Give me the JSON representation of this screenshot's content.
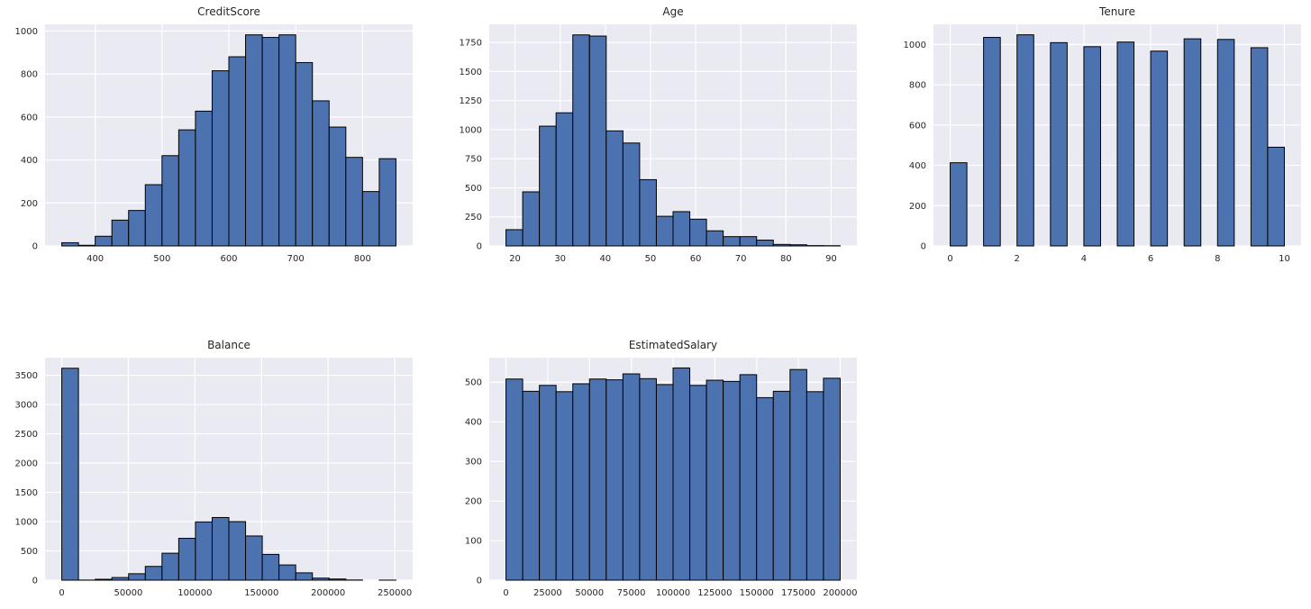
{
  "style": {
    "figure_bg": "#ffffff",
    "axes_bg": "#eaeaf2",
    "grid_color": "#ffffff",
    "bar_fill": "#4c72b0",
    "bar_edge": "#000000",
    "text_color": "#262626"
  },
  "chart_data": [
    {
      "type": "bar",
      "subtype": "histogram",
      "title": "CreditScore",
      "bins": {
        "start": 350,
        "width": 25
      },
      "counts": [
        15,
        3,
        45,
        120,
        165,
        285,
        420,
        540,
        627,
        815,
        880,
        982,
        970,
        982,
        853,
        675,
        553,
        412,
        253,
        406
      ],
      "xlim": [
        325,
        875
      ],
      "ylim": [
        0,
        1031
      ],
      "xticks": [
        400,
        500,
        600,
        700,
        800
      ],
      "yticks": [
        0,
        200,
        400,
        600,
        800,
        1000
      ],
      "grid": true,
      "legend": false
    },
    {
      "type": "bar",
      "subtype": "histogram",
      "title": "Age",
      "bins": {
        "start": 18,
        "width": 3.7
      },
      "counts": [
        140,
        465,
        1030,
        1145,
        1815,
        1805,
        990,
        885,
        570,
        255,
        295,
        230,
        130,
        80,
        80,
        50,
        13,
        10,
        3,
        2
      ],
      "xlim": [
        14.3,
        95.7
      ],
      "ylim": [
        0,
        1906
      ],
      "xticks": [
        20,
        30,
        40,
        50,
        60,
        70,
        80,
        90
      ],
      "yticks": [
        0,
        250,
        500,
        750,
        1000,
        1250,
        1500,
        1750
      ],
      "grid": true,
      "legend": false
    },
    {
      "type": "bar",
      "subtype": "histogram",
      "title": "Tenure",
      "bins": {
        "start": 0,
        "width": 0.5
      },
      "counts": [
        413,
        0,
        1035,
        0,
        1048,
        0,
        1009,
        0,
        989,
        0,
        1012,
        0,
        967,
        0,
        1028,
        0,
        1025,
        0,
        984,
        490
      ],
      "xlim": [
        -0.5,
        10.5
      ],
      "ylim": [
        0,
        1100
      ],
      "xticks": [
        0,
        2,
        4,
        6,
        8,
        10
      ],
      "yticks": [
        0,
        200,
        400,
        600,
        800,
        1000
      ],
      "grid": true,
      "legend": false
    },
    {
      "type": "bar",
      "subtype": "histogram",
      "title": "Balance",
      "bins": {
        "start": 0,
        "width": 12544.9
      },
      "counts": [
        3620,
        2,
        15,
        45,
        110,
        235,
        460,
        715,
        995,
        1070,
        1000,
        755,
        440,
        260,
        125,
        35,
        20,
        3,
        0,
        1
      ],
      "xlim": [
        -12545,
        263443
      ],
      "ylim": [
        0,
        3801
      ],
      "xticks": [
        0,
        50000,
        100000,
        150000,
        200000,
        250000
      ],
      "yticks": [
        0,
        500,
        1000,
        1500,
        2000,
        2500,
        3000,
        3500
      ],
      "grid": true,
      "legend": false
    },
    {
      "type": "bar",
      "subtype": "histogram",
      "title": "EstimatedSalary",
      "bins": {
        "start": 11.58,
        "width": 9999.05
      },
      "counts": [
        508,
        477,
        492,
        476,
        496,
        508,
        506,
        521,
        509,
        494,
        536,
        492,
        505,
        502,
        519,
        461,
        477,
        532,
        476,
        510
      ],
      "xlim": [
        -9988,
        209991
      ],
      "ylim": [
        0,
        562
      ],
      "xticks": [
        0,
        25000,
        50000,
        75000,
        100000,
        125000,
        150000,
        175000,
        200000
      ],
      "yticks": [
        0,
        100,
        200,
        300,
        400,
        500
      ],
      "grid": true,
      "legend": false
    }
  ]
}
